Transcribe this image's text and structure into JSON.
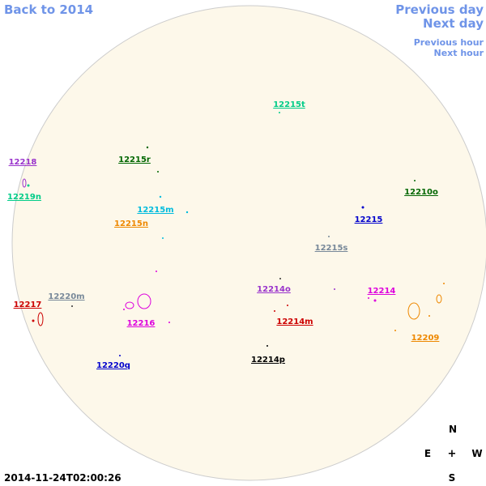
{
  "nav": {
    "back": "Back to 2014",
    "previous_day": "Previous day",
    "next_day": "Next day",
    "previous_hour": "Previous hour",
    "next_hour": "Next hour"
  },
  "timestamp": "2014-11-24T02:00:26",
  "compass": {
    "north": "N",
    "east": "E",
    "center": "+",
    "west": "W",
    "south": "S"
  },
  "regions": [
    {
      "label": "12215t",
      "color": "#00cc88"
    },
    {
      "label": "12218",
      "color": "#9933cc"
    },
    {
      "label": "12215r",
      "color": "#006600"
    },
    {
      "label": "12219n",
      "color": "#00cc88"
    },
    {
      "label": "12210o",
      "color": "#006600"
    },
    {
      "label": "12215m",
      "color": "#00bbdd"
    },
    {
      "label": "12215n",
      "color": "#ee8800"
    },
    {
      "label": "12215",
      "color": "#0000cc"
    },
    {
      "label": "12215s",
      "color": "#778899"
    },
    {
      "label": "12220m",
      "color": "#778899"
    },
    {
      "label": "12214o",
      "color": "#9933cc"
    },
    {
      "label": "12214",
      "color": "#dd00dd"
    },
    {
      "label": "12217",
      "color": "#cc0000"
    },
    {
      "label": "12216",
      "color": "#dd00dd"
    },
    {
      "label": "12214m",
      "color": "#cc0000"
    },
    {
      "label": "12209",
      "color": "#ee8800"
    },
    {
      "label": "12214p",
      "color": "#000000"
    },
    {
      "label": "12220q",
      "color": "#0000cc"
    }
  ]
}
